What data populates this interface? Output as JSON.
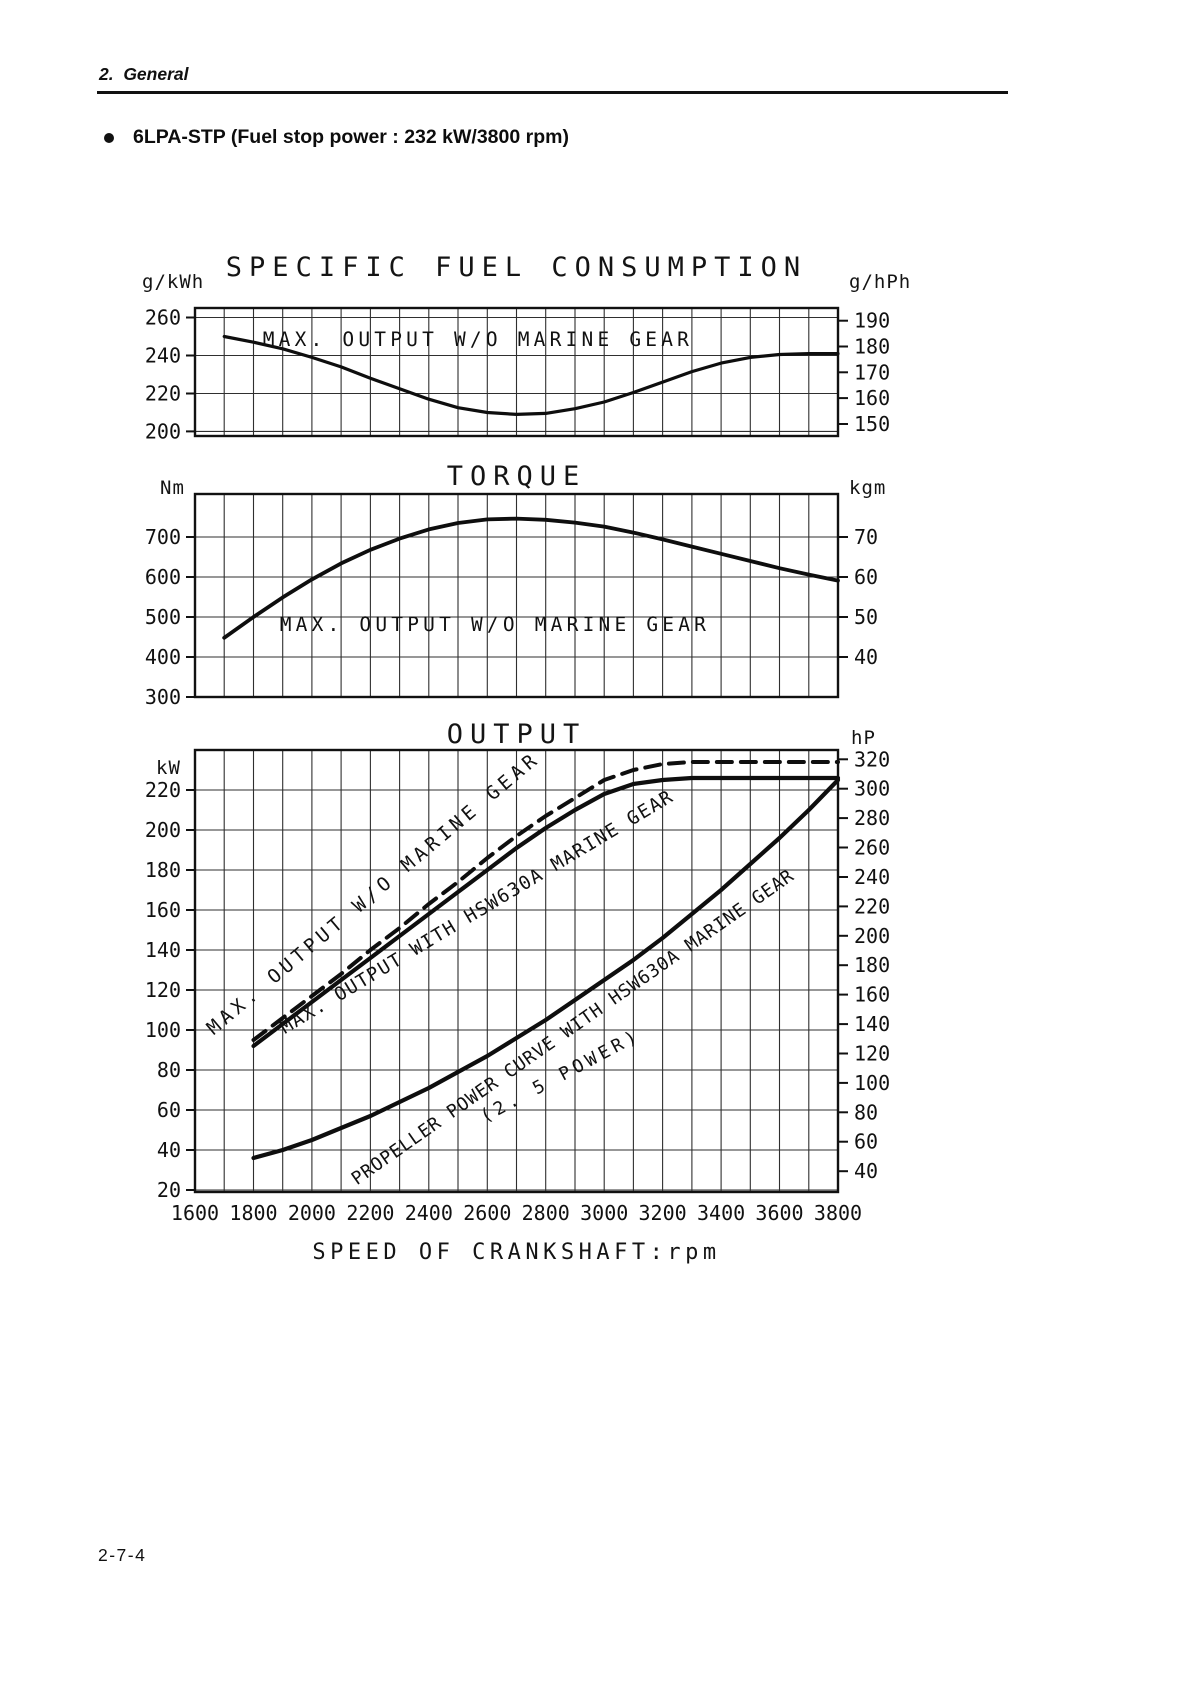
{
  "page": {
    "section_header": "2.  General",
    "bullet_heading": "6LPA-STP (Fuel stop power : 232 kW/3800 rpm)",
    "page_number": "2-7-4"
  },
  "chart_data": [
    {
      "id": "sfc",
      "type": "line",
      "title": "SPECIFIC FUEL CONSUMPTION",
      "y_left_unit": "g/kWh",
      "y_right_unit": "g/hPh",
      "x_axis": {
        "min": 1600,
        "max": 3800,
        "grid_step": 100
      },
      "y_axis_left": {
        "min": 197.6,
        "max": 265,
        "ticks": [
          260,
          240,
          220,
          200
        ]
      },
      "y_axis_right": {
        "ticks": [
          190,
          180,
          170,
          160,
          150
        ],
        "left_units_per_right_unit": 1.3596
      },
      "series": [
        {
          "name": "MAX. OUTPUT W/O MARINE GEAR",
          "style": "solid",
          "width": 3.2,
          "points": [
            [
              1700,
              250
            ],
            [
              1800,
              247
            ],
            [
              1900,
              243.5
            ],
            [
              2000,
              239
            ],
            [
              2100,
              234
            ],
            [
              2200,
              228
            ],
            [
              2300,
              222.5
            ],
            [
              2400,
              217
            ],
            [
              2500,
              212.5
            ],
            [
              2600,
              210
            ],
            [
              2700,
              209
            ],
            [
              2800,
              209.5
            ],
            [
              2900,
              212
            ],
            [
              3000,
              215.5
            ],
            [
              3100,
              220.5
            ],
            [
              3200,
              226
            ],
            [
              3300,
              231.5
            ],
            [
              3400,
              236
            ],
            [
              3500,
              239
            ],
            [
              3600,
              240.5
            ],
            [
              3700,
              241
            ],
            [
              3800,
              241
            ]
          ]
        }
      ],
      "annotations": [
        {
          "text": "MAX. OUTPUT W/O MARINE GEAR",
          "rpm": 2568,
          "value": 245,
          "rotate": 0,
          "font_size": 19.5,
          "letter_spacing": 4.2
        }
      ]
    },
    {
      "id": "torque",
      "type": "line",
      "title": "TORQUE",
      "y_left_unit": "Nm",
      "y_right_unit": "kgm",
      "x_axis": {
        "min": 1600,
        "max": 3800,
        "grid_step": 100
      },
      "y_axis_left": {
        "min": 300,
        "max": 807.5,
        "ticks": [
          700,
          600,
          500,
          400,
          300
        ]
      },
      "y_axis_right": {
        "ticks": [
          70,
          60,
          50,
          40
        ],
        "left_units_per_right_unit": 10
      },
      "series": [
        {
          "name": "MAX. OUTPUT W/O MARINE GEAR",
          "style": "solid",
          "width": 3.8,
          "points": [
            [
              1700,
              448
            ],
            [
              1800,
              500
            ],
            [
              1900,
              549
            ],
            [
              2000,
              594
            ],
            [
              2100,
              634
            ],
            [
              2200,
              668
            ],
            [
              2300,
              696
            ],
            [
              2400,
              719
            ],
            [
              2500,
              735
            ],
            [
              2600,
              744
            ],
            [
              2700,
              746
            ],
            [
              2800,
              743
            ],
            [
              2900,
              736
            ],
            [
              3000,
              726
            ],
            [
              3100,
              711
            ],
            [
              3200,
              694
            ],
            [
              3300,
              676
            ],
            [
              3400,
              658
            ],
            [
              3500,
              640
            ],
            [
              3600,
              622
            ],
            [
              3700,
              606
            ],
            [
              3800,
              591
            ]
          ]
        }
      ],
      "annotations": [
        {
          "text": "MAX. OUTPUT W/O MARINE GEAR",
          "rpm": 2626,
          "value": 465,
          "rotate": 0,
          "font_size": 19.5,
          "letter_spacing": 4.2
        }
      ]
    },
    {
      "id": "output",
      "type": "line",
      "title": "OUTPUT",
      "y_left_unit": "kW",
      "y_right_unit": "hP",
      "x_axis": {
        "min": 1600,
        "max": 3800,
        "grid_step": 100,
        "tick_labels": [
          1600,
          1800,
          2000,
          2200,
          2400,
          2600,
          2800,
          3000,
          3200,
          3400,
          3600,
          3800
        ],
        "label": "SPEED OF CRANKSHAFT:rpm"
      },
      "y_axis_left": {
        "min": 19,
        "max": 240,
        "ticks": [
          220,
          200,
          180,
          160,
          140,
          120,
          100,
          80,
          60,
          40,
          20
        ]
      },
      "y_axis_right": {
        "ticks": [
          320,
          300,
          280,
          260,
          240,
          220,
          200,
          180,
          160,
          140,
          120,
          100,
          80,
          60,
          40
        ],
        "left_units_per_right_unit": 0.7355
      },
      "series": [
        {
          "name": "MAX. OUTPUT W/O MARINE GEAR",
          "style": "dashed",
          "width": 4,
          "points": [
            [
              1800,
              95
            ],
            [
              1900,
              106
            ],
            [
              2000,
              117
            ],
            [
              2100,
              128
            ],
            [
              2200,
              140
            ],
            [
              2300,
              151
            ],
            [
              2400,
              163
            ],
            [
              2500,
              174
            ],
            [
              2600,
              186
            ],
            [
              2700,
              197
            ],
            [
              2800,
              207
            ],
            [
              2900,
              216
            ],
            [
              3000,
              225
            ],
            [
              3100,
              230
            ],
            [
              3200,
              233
            ],
            [
              3300,
              234
            ],
            [
              3400,
              234
            ],
            [
              3500,
              234
            ],
            [
              3600,
              234
            ],
            [
              3700,
              234
            ],
            [
              3800,
              234
            ]
          ]
        },
        {
          "name": "MAX. OUTPUT WITH HSW630A MARINE GEAR",
          "style": "solid",
          "width": 4.2,
          "points": [
            [
              1800,
              92
            ],
            [
              1900,
              103
            ],
            [
              2000,
              114
            ],
            [
              2100,
              125
            ],
            [
              2200,
              136
            ],
            [
              2300,
              147
            ],
            [
              2400,
              158
            ],
            [
              2500,
              169
            ],
            [
              2600,
              180
            ],
            [
              2700,
              191
            ],
            [
              2800,
              201
            ],
            [
              2900,
              210
            ],
            [
              3000,
              218
            ],
            [
              3100,
              223
            ],
            [
              3200,
              225
            ],
            [
              3300,
              226
            ],
            [
              3400,
              226
            ],
            [
              3500,
              226
            ],
            [
              3600,
              226
            ],
            [
              3700,
              226
            ],
            [
              3800,
              226
            ]
          ]
        },
        {
          "name": "PROPELLER POWER CURVE WITH HSW630A MARINE GEAR (2.5 POWER)",
          "style": "solid",
          "width": 4.2,
          "points": [
            [
              1800,
              36
            ],
            [
              1900,
              40
            ],
            [
              2000,
              45
            ],
            [
              2100,
              51
            ],
            [
              2200,
              57
            ],
            [
              2300,
              64
            ],
            [
              2400,
              71
            ],
            [
              2500,
              79
            ],
            [
              2600,
              87
            ],
            [
              2700,
              96
            ],
            [
              2800,
              105
            ],
            [
              2900,
              115
            ],
            [
              3000,
              125
            ],
            [
              3100,
              135
            ],
            [
              3200,
              146
            ],
            [
              3300,
              158
            ],
            [
              3400,
              170
            ],
            [
              3500,
              183
            ],
            [
              3600,
              196
            ],
            [
              3700,
              210
            ],
            [
              3800,
              225
            ]
          ]
        }
      ],
      "annotations": [
        {
          "text": "MAX. OUTPUT W/O MARINE GEAR",
          "rpm": 2224,
          "value": 166,
          "rotate": -40,
          "font_size": 19,
          "letter_spacing": 4.4
        },
        {
          "text": "MAX. OUTPUT WITH HSW630A MARINE GEAR",
          "rpm": 2575,
          "value": 156.5,
          "rotate": -31,
          "font_size": 18.5,
          "letter_spacing": 1.5
        },
        {
          "text": "PROPELLER POWER CURVE WITH HSW630A MARINE GEAR",
          "rpm": 2904,
          "value": 99,
          "rotate": -35,
          "font_size": 18,
          "letter_spacing": 0.8
        },
        {
          "text": "(2. 5 POWER)",
          "rpm": 2859,
          "value": 74.5,
          "rotate": -28,
          "font_size": 18,
          "letter_spacing": 4
        }
      ]
    }
  ]
}
